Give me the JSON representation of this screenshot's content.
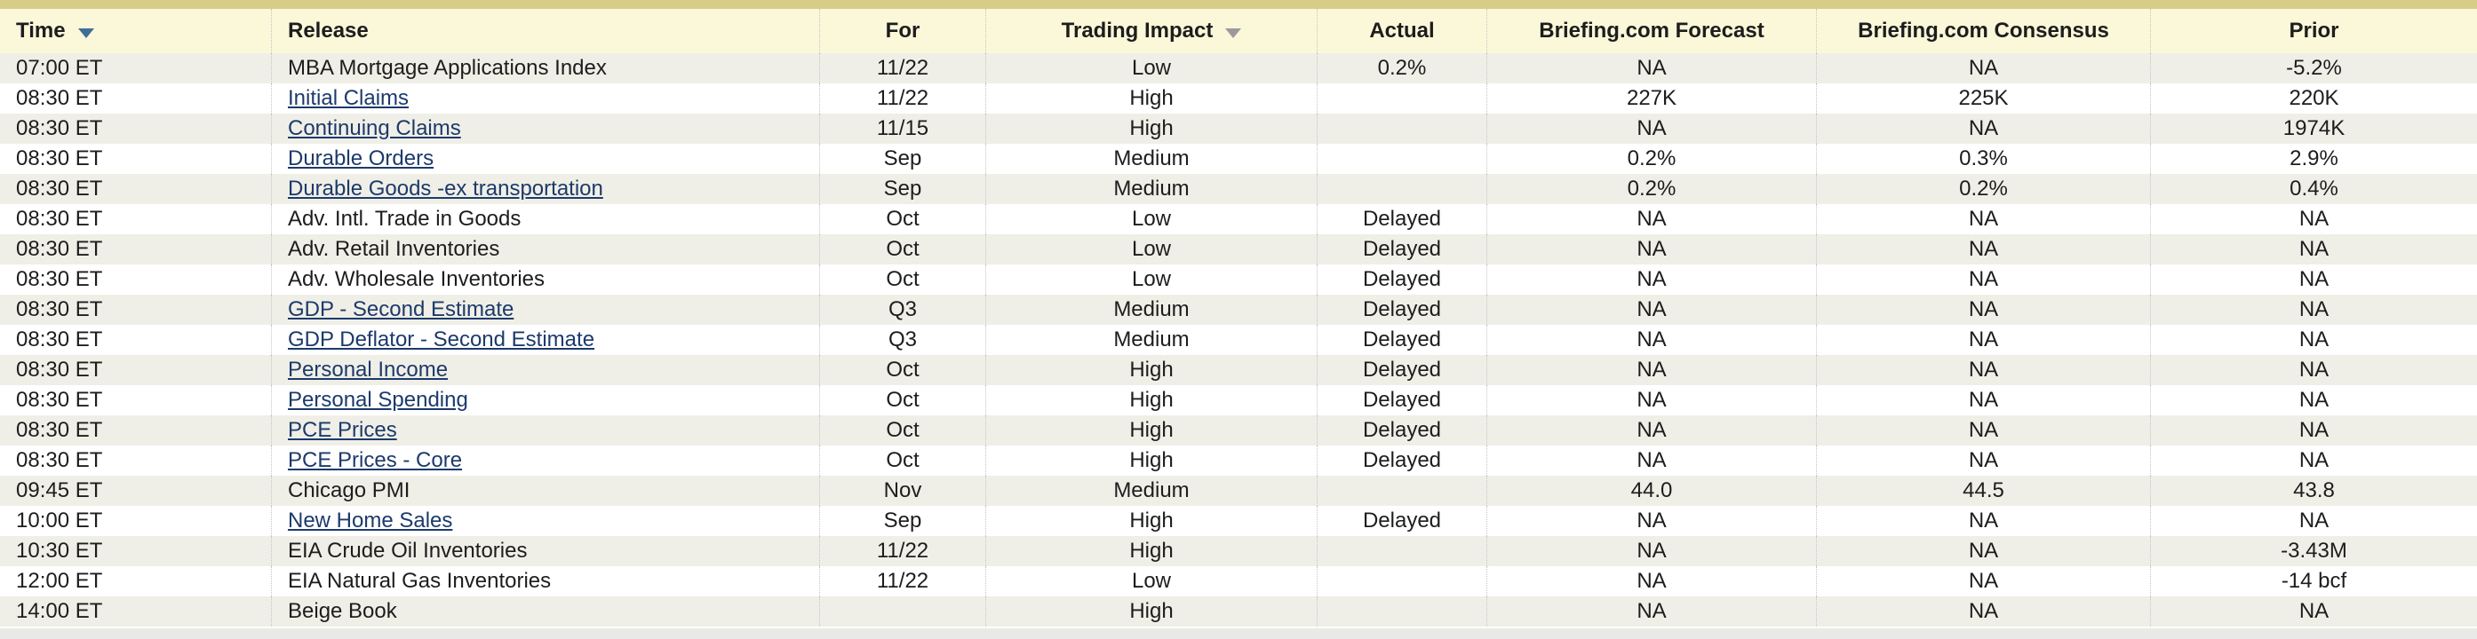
{
  "colors": {
    "top_accent_bar": "#d7cd89",
    "header_background": "#fbf7d9",
    "row_stripe": "#f0efe7",
    "row_white": "#ffffff",
    "text": "#1d1d1d",
    "link": "#1c3a6b",
    "time_sort_arrow": "#3f6f96",
    "impact_sort_arrow": "#9a9a9a",
    "column_divider": "#c5c5c5",
    "bottom_strip": "#e9e9e8"
  },
  "table": {
    "columns": [
      {
        "key": "time",
        "label": "Time",
        "sort_icon": "down-triangle",
        "align": "left"
      },
      {
        "key": "release",
        "label": "Release",
        "align": "left"
      },
      {
        "key": "for",
        "label": "For",
        "align": "center"
      },
      {
        "key": "impact",
        "label": "Trading Impact",
        "sort_icon": "down-triangle",
        "align": "center"
      },
      {
        "key": "actual",
        "label": "Actual",
        "align": "center"
      },
      {
        "key": "forecast",
        "label": "Briefing.com Forecast",
        "align": "center"
      },
      {
        "key": "consensus",
        "label": "Briefing.com Consensus",
        "align": "center"
      },
      {
        "key": "prior",
        "label": "Prior",
        "align": "center"
      }
    ],
    "rows": [
      {
        "time": "07:00 ET",
        "release": "MBA Mortgage Applications Index",
        "release_link": false,
        "for": "11/22",
        "impact": "Low",
        "actual": "0.2%",
        "forecast": "NA",
        "consensus": "NA",
        "prior": "-5.2%"
      },
      {
        "time": "08:30 ET",
        "release": "Initial Claims",
        "release_link": true,
        "for": "11/22",
        "impact": "High",
        "actual": "",
        "forecast": "227K",
        "consensus": "225K",
        "prior": "220K"
      },
      {
        "time": "08:30 ET",
        "release": "Continuing Claims",
        "release_link": true,
        "for": "11/15",
        "impact": "High",
        "actual": "",
        "forecast": "NA",
        "consensus": "NA",
        "prior": "1974K"
      },
      {
        "time": "08:30 ET",
        "release": "Durable Orders",
        "release_link": true,
        "for": "Sep",
        "impact": "Medium",
        "actual": "",
        "forecast": "0.2%",
        "consensus": "0.3%",
        "prior": "2.9%"
      },
      {
        "time": "08:30 ET",
        "release": "Durable Goods -ex transportation",
        "release_link": true,
        "for": "Sep",
        "impact": "Medium",
        "actual": "",
        "forecast": "0.2%",
        "consensus": "0.2%",
        "prior": "0.4%"
      },
      {
        "time": "08:30 ET",
        "release": "Adv. Intl. Trade in Goods",
        "release_link": false,
        "for": "Oct",
        "impact": "Low",
        "actual": "Delayed",
        "forecast": "NA",
        "consensus": "NA",
        "prior": "NA"
      },
      {
        "time": "08:30 ET",
        "release": "Adv. Retail Inventories",
        "release_link": false,
        "for": "Oct",
        "impact": "Low",
        "actual": "Delayed",
        "forecast": "NA",
        "consensus": "NA",
        "prior": "NA"
      },
      {
        "time": "08:30 ET",
        "release": "Adv. Wholesale Inventories",
        "release_link": false,
        "for": "Oct",
        "impact": "Low",
        "actual": "Delayed",
        "forecast": "NA",
        "consensus": "NA",
        "prior": "NA"
      },
      {
        "time": "08:30 ET",
        "release": "GDP - Second Estimate",
        "release_link": true,
        "for": "Q3",
        "impact": "Medium",
        "actual": "Delayed",
        "forecast": "NA",
        "consensus": "NA",
        "prior": "NA"
      },
      {
        "time": "08:30 ET",
        "release": "GDP Deflator - Second Estimate",
        "release_link": true,
        "for": "Q3",
        "impact": "Medium",
        "actual": "Delayed",
        "forecast": "NA",
        "consensus": "NA",
        "prior": "NA"
      },
      {
        "time": "08:30 ET",
        "release": "Personal Income",
        "release_link": true,
        "for": "Oct",
        "impact": "High",
        "actual": "Delayed",
        "forecast": "NA",
        "consensus": "NA",
        "prior": "NA"
      },
      {
        "time": "08:30 ET",
        "release": "Personal Spending",
        "release_link": true,
        "for": "Oct",
        "impact": "High",
        "actual": "Delayed",
        "forecast": "NA",
        "consensus": "NA",
        "prior": "NA"
      },
      {
        "time": "08:30 ET",
        "release": "PCE Prices",
        "release_link": true,
        "for": "Oct",
        "impact": "High",
        "actual": "Delayed",
        "forecast": "NA",
        "consensus": "NA",
        "prior": "NA"
      },
      {
        "time": "08:30 ET",
        "release": "PCE Prices - Core",
        "release_link": true,
        "for": "Oct",
        "impact": "High",
        "actual": "Delayed",
        "forecast": "NA",
        "consensus": "NA",
        "prior": "NA"
      },
      {
        "time": "09:45 ET",
        "release": "Chicago PMI",
        "release_link": false,
        "for": "Nov",
        "impact": "Medium",
        "actual": "",
        "forecast": "44.0",
        "consensus": "44.5",
        "prior": "43.8"
      },
      {
        "time": "10:00 ET",
        "release": "New Home Sales",
        "release_link": true,
        "for": "Sep",
        "impact": "High",
        "actual": "Delayed",
        "forecast": "NA",
        "consensus": "NA",
        "prior": "NA"
      },
      {
        "time": "10:30 ET",
        "release": "EIA Crude Oil Inventories",
        "release_link": false,
        "for": "11/22",
        "impact": "High",
        "actual": "",
        "forecast": "NA",
        "consensus": "NA",
        "prior": "-3.43M"
      },
      {
        "time": "12:00 ET",
        "release": "EIA Natural Gas Inventories",
        "release_link": false,
        "for": "11/22",
        "impact": "Low",
        "actual": "",
        "forecast": "NA",
        "consensus": "NA",
        "prior": "-14 bcf"
      },
      {
        "time": "14:00 ET",
        "release": "Beige Book",
        "release_link": false,
        "for": "",
        "impact": "High",
        "actual": "",
        "forecast": "NA",
        "consensus": "NA",
        "prior": "NA"
      }
    ]
  }
}
